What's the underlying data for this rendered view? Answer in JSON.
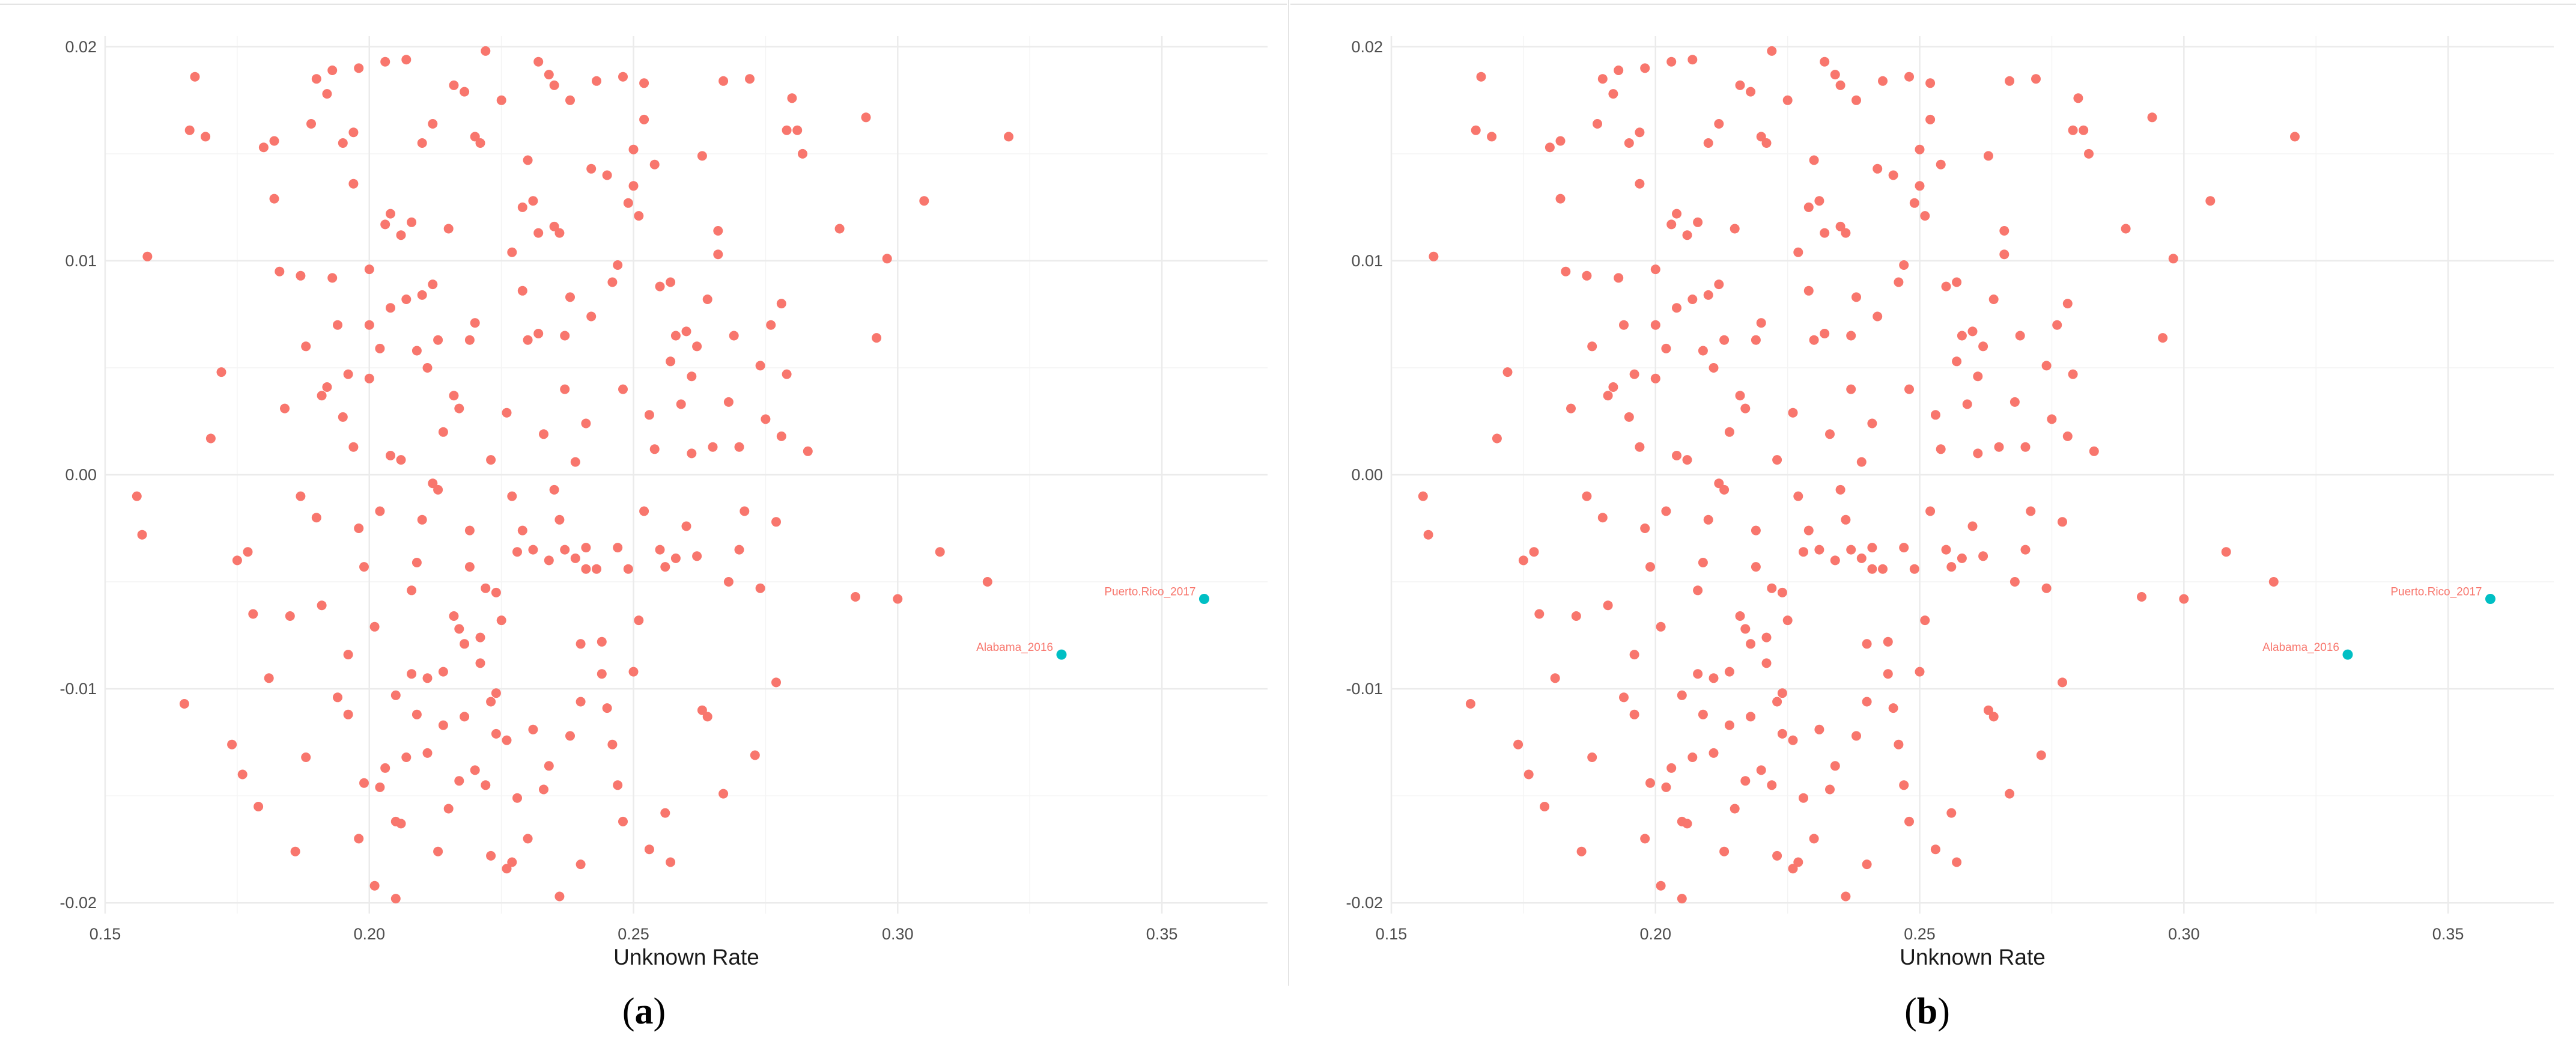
{
  "figure": {
    "panels": [
      {
        "caption_open": "(",
        "caption_letter": "a",
        "caption_close": ")"
      },
      {
        "caption_open": "(",
        "caption_letter": "b",
        "caption_close": ")"
      }
    ]
  },
  "chart_data": [
    {
      "type": "scatter",
      "xlabel": "Unknown Rate",
      "ylabel": "",
      "xlim": [
        0.15,
        0.37
      ],
      "ylim": [
        -0.0205,
        0.0205
      ],
      "xticks": [
        "0.15",
        "0.20",
        "0.25",
        "0.30",
        "0.35"
      ],
      "yticks": [
        "-0.02",
        "-0.01",
        "0.00",
        "0.01",
        "0.02"
      ],
      "grid": true,
      "colors": {
        "regular": "#f8766d",
        "highlighted": "#00bfc4",
        "grid": "#ebebeb"
      },
      "points_source": "shared",
      "highlighted": [
        {
          "label": "Puerto.Rico_2017",
          "x": 0.358,
          "y": -0.0058
        },
        {
          "label": "Alabama_2016",
          "x": 0.331,
          "y": -0.0084
        }
      ]
    },
    {
      "type": "scatter",
      "xlabel": "Unknown Rate",
      "ylabel": "",
      "xlim": [
        0.15,
        0.37
      ],
      "ylim": [
        -0.0205,
        0.0205
      ],
      "xticks": [
        "0.15",
        "0.20",
        "0.25",
        "0.30",
        "0.35"
      ],
      "yticks": [
        "-0.02",
        "-0.01",
        "0.00",
        "0.01",
        "0.02"
      ],
      "grid": true,
      "colors": {
        "regular": "#f8766d",
        "highlighted": "#00bfc4",
        "grid": "#ebebeb"
      },
      "points_source": "shared",
      "highlighted": [
        {
          "label": "Puerto.Rico_2017",
          "x": 0.358,
          "y": -0.0058
        },
        {
          "label": "Alabama_2016",
          "x": 0.331,
          "y": -0.0084
        }
      ]
    }
  ],
  "points": [
    [
      0.156,
      -0.001
    ],
    [
      0.157,
      -0.0028
    ],
    [
      0.158,
      0.0102
    ],
    [
      0.165,
      -0.0107
    ],
    [
      0.166,
      0.0161
    ],
    [
      0.167,
      0.0186
    ],
    [
      0.169,
      0.0158
    ],
    [
      0.17,
      0.0017
    ],
    [
      0.172,
      0.0048
    ],
    [
      0.174,
      -0.0126
    ],
    [
      0.175,
      -0.004
    ],
    [
      0.176,
      -0.014
    ],
    [
      0.177,
      -0.0036
    ],
    [
      0.178,
      -0.0065
    ],
    [
      0.179,
      -0.0155
    ],
    [
      0.18,
      0.0153
    ],
    [
      0.181,
      -0.0095
    ],
    [
      0.182,
      0.0156
    ],
    [
      0.182,
      0.0129
    ],
    [
      0.183,
      0.0095
    ],
    [
      0.184,
      0.0031
    ],
    [
      0.185,
      -0.0066
    ],
    [
      0.186,
      -0.0176
    ],
    [
      0.187,
      -0.001
    ],
    [
      0.187,
      0.0093
    ],
    [
      0.188,
      0.006
    ],
    [
      0.188,
      -0.0132
    ],
    [
      0.189,
      0.0164
    ],
    [
      0.19,
      -0.002
    ],
    [
      0.19,
      0.0185
    ],
    [
      0.191,
      0.0037
    ],
    [
      0.191,
      -0.0061
    ],
    [
      0.192,
      0.0041
    ],
    [
      0.192,
      0.0178
    ],
    [
      0.193,
      0.0189
    ],
    [
      0.193,
      0.0092
    ],
    [
      0.194,
      0.007
    ],
    [
      0.194,
      -0.0104
    ],
    [
      0.195,
      0.0155
    ],
    [
      0.195,
      0.0027
    ],
    [
      0.196,
      0.0047
    ],
    [
      0.196,
      -0.0084
    ],
    [
      0.196,
      -0.0112
    ],
    [
      0.197,
      0.0136
    ],
    [
      0.197,
      0.016
    ],
    [
      0.197,
      0.0013
    ],
    [
      0.198,
      -0.017
    ],
    [
      0.198,
      0.019
    ],
    [
      0.198,
      -0.0025
    ],
    [
      0.199,
      -0.0144
    ],
    [
      0.199,
      -0.0043
    ],
    [
      0.2,
      0.007
    ],
    [
      0.2,
      0.0045
    ],
    [
      0.2,
      0.0096
    ],
    [
      0.201,
      -0.0071
    ],
    [
      0.201,
      -0.0192
    ],
    [
      0.202,
      -0.0146
    ],
    [
      0.202,
      -0.0017
    ],
    [
      0.202,
      0.0059
    ],
    [
      0.203,
      0.0193
    ],
    [
      0.203,
      0.0117
    ],
    [
      0.203,
      -0.0137
    ],
    [
      0.204,
      0.0122
    ],
    [
      0.204,
      0.0078
    ],
    [
      0.204,
      0.0009
    ],
    [
      0.205,
      -0.0103
    ],
    [
      0.205,
      -0.0162
    ],
    [
      0.205,
      -0.0198
    ],
    [
      0.206,
      0.0007
    ],
    [
      0.206,
      0.0112
    ],
    [
      0.206,
      -0.0163
    ],
    [
      0.207,
      -0.0132
    ],
    [
      0.207,
      0.0194
    ],
    [
      0.207,
      0.0082
    ],
    [
      0.208,
      -0.0093
    ],
    [
      0.208,
      -0.0054
    ],
    [
      0.208,
      0.0118
    ],
    [
      0.209,
      -0.0041
    ],
    [
      0.209,
      0.0058
    ],
    [
      0.209,
      -0.0112
    ],
    [
      0.21,
      -0.0021
    ],
    [
      0.21,
      0.0155
    ],
    [
      0.21,
      0.0084
    ],
    [
      0.211,
      0.005
    ],
    [
      0.211,
      -0.0095
    ],
    [
      0.211,
      -0.013
    ],
    [
      0.212,
      0.0164
    ],
    [
      0.212,
      0.0089
    ],
    [
      0.212,
      -0.0004
    ],
    [
      0.213,
      0.0063
    ],
    [
      0.213,
      -0.0176
    ],
    [
      0.213,
      -0.0007
    ],
    [
      0.214,
      -0.0117
    ],
    [
      0.214,
      -0.0092
    ],
    [
      0.214,
      0.002
    ],
    [
      0.215,
      -0.0156
    ],
    [
      0.215,
      0.0115
    ],
    [
      0.216,
      -0.0066
    ],
    [
      0.216,
      0.0182
    ],
    [
      0.216,
      0.0037
    ],
    [
      0.217,
      -0.0143
    ],
    [
      0.217,
      -0.0072
    ],
    [
      0.217,
      0.0031
    ],
    [
      0.218,
      0.0179
    ],
    [
      0.218,
      -0.0113
    ],
    [
      0.218,
      -0.0079
    ],
    [
      0.219,
      0.0063
    ],
    [
      0.219,
      -0.0026
    ],
    [
      0.219,
      -0.0043
    ],
    [
      0.22,
      0.0158
    ],
    [
      0.22,
      0.0071
    ],
    [
      0.22,
      -0.0138
    ],
    [
      0.221,
      -0.0076
    ],
    [
      0.221,
      -0.0088
    ],
    [
      0.221,
      0.0155
    ],
    [
      0.222,
      -0.0145
    ],
    [
      0.222,
      -0.0053
    ],
    [
      0.222,
      0.0198
    ],
    [
      0.223,
      0.0007
    ],
    [
      0.223,
      -0.0106
    ],
    [
      0.223,
      -0.0178
    ],
    [
      0.224,
      -0.0121
    ],
    [
      0.224,
      -0.0055
    ],
    [
      0.224,
      -0.0102
    ],
    [
      0.225,
      0.0175
    ],
    [
      0.225,
      -0.0068
    ],
    [
      0.226,
      -0.0184
    ],
    [
      0.226,
      0.0029
    ],
    [
      0.226,
      -0.0124
    ],
    [
      0.227,
      0.0104
    ],
    [
      0.227,
      -0.0181
    ],
    [
      0.227,
      -0.001
    ],
    [
      0.228,
      -0.0151
    ],
    [
      0.228,
      -0.0036
    ],
    [
      0.229,
      0.0125
    ],
    [
      0.229,
      -0.0026
    ],
    [
      0.229,
      0.0086
    ],
    [
      0.23,
      0.0147
    ],
    [
      0.23,
      -0.017
    ],
    [
      0.23,
      0.0063
    ],
    [
      0.231,
      0.0128
    ],
    [
      0.231,
      -0.0119
    ],
    [
      0.231,
      -0.0035
    ],
    [
      0.232,
      0.0193
    ],
    [
      0.232,
      0.0113
    ],
    [
      0.232,
      0.0066
    ],
    [
      0.233,
      0.0019
    ],
    [
      0.233,
      -0.0147
    ],
    [
      0.234,
      -0.0136
    ],
    [
      0.234,
      0.0187
    ],
    [
      0.234,
      -0.004
    ],
    [
      0.235,
      0.0116
    ],
    [
      0.235,
      -0.0007
    ],
    [
      0.235,
      0.0182
    ],
    [
      0.236,
      -0.0197
    ],
    [
      0.236,
      0.0113
    ],
    [
      0.236,
      -0.0021
    ],
    [
      0.237,
      0.004
    ],
    [
      0.237,
      0.0065
    ],
    [
      0.237,
      -0.0035
    ],
    [
      0.238,
      0.0083
    ],
    [
      0.238,
      -0.0122
    ],
    [
      0.238,
      0.0175
    ],
    [
      0.239,
      0.0006
    ],
    [
      0.239,
      -0.0039
    ],
    [
      0.24,
      -0.0182
    ],
    [
      0.24,
      -0.0079
    ],
    [
      0.24,
      -0.0106
    ],
    [
      0.241,
      -0.0034
    ],
    [
      0.241,
      -0.0044
    ],
    [
      0.241,
      0.0024
    ],
    [
      0.242,
      0.0143
    ],
    [
      0.242,
      0.0074
    ],
    [
      0.243,
      0.0184
    ],
    [
      0.243,
      -0.0044
    ],
    [
      0.244,
      -0.0078
    ],
    [
      0.244,
      -0.0093
    ],
    [
      0.245,
      0.014
    ],
    [
      0.245,
      -0.0109
    ],
    [
      0.246,
      0.009
    ],
    [
      0.246,
      -0.0126
    ],
    [
      0.247,
      0.0098
    ],
    [
      0.247,
      -0.0034
    ],
    [
      0.247,
      -0.0145
    ],
    [
      0.248,
      0.004
    ],
    [
      0.248,
      0.0186
    ],
    [
      0.248,
      -0.0162
    ],
    [
      0.249,
      0.0127
    ],
    [
      0.249,
      -0.0044
    ],
    [
      0.25,
      0.0135
    ],
    [
      0.25,
      0.0152
    ],
    [
      0.25,
      -0.0092
    ],
    [
      0.251,
      0.0121
    ],
    [
      0.251,
      -0.0068
    ],
    [
      0.252,
      0.0166
    ],
    [
      0.252,
      0.0183
    ],
    [
      0.252,
      -0.0017
    ],
    [
      0.253,
      -0.0175
    ],
    [
      0.253,
      0.0028
    ],
    [
      0.254,
      0.0145
    ],
    [
      0.254,
      0.0012
    ],
    [
      0.255,
      -0.0035
    ],
    [
      0.255,
      0.0088
    ],
    [
      0.256,
      -0.0158
    ],
    [
      0.256,
      -0.0043
    ],
    [
      0.257,
      0.009
    ],
    [
      0.257,
      0.0053
    ],
    [
      0.257,
      -0.0181
    ],
    [
      0.258,
      0.0065
    ],
    [
      0.258,
      -0.0039
    ],
    [
      0.259,
      0.0033
    ],
    [
      0.26,
      0.0067
    ],
    [
      0.26,
      -0.0024
    ],
    [
      0.261,
      0.0046
    ],
    [
      0.261,
      0.001
    ],
    [
      0.262,
      0.006
    ],
    [
      0.262,
      -0.0038
    ],
    [
      0.263,
      -0.011
    ],
    [
      0.263,
      0.0149
    ],
    [
      0.264,
      0.0082
    ],
    [
      0.264,
      -0.0113
    ],
    [
      0.265,
      0.0013
    ],
    [
      0.266,
      0.0103
    ],
    [
      0.266,
      0.0114
    ],
    [
      0.267,
      0.0184
    ],
    [
      0.267,
      -0.0149
    ],
    [
      0.268,
      -0.005
    ],
    [
      0.268,
      0.0034
    ],
    [
      0.269,
      0.0065
    ],
    [
      0.27,
      -0.0035
    ],
    [
      0.27,
      0.0013
    ],
    [
      0.271,
      -0.0017
    ],
    [
      0.272,
      0.0185
    ],
    [
      0.273,
      -0.0131
    ],
    [
      0.274,
      0.0051
    ],
    [
      0.274,
      -0.0053
    ],
    [
      0.275,
      0.0026
    ],
    [
      0.276,
      0.007
    ],
    [
      0.277,
      -0.0022
    ],
    [
      0.277,
      -0.0097
    ],
    [
      0.278,
      0.008
    ],
    [
      0.278,
      0.0018
    ],
    [
      0.279,
      0.0047
    ],
    [
      0.279,
      0.0161
    ],
    [
      0.28,
      0.0176
    ],
    [
      0.281,
      0.0161
    ],
    [
      0.282,
      0.015
    ],
    [
      0.283,
      0.0011
    ],
    [
      0.289,
      0.0115
    ],
    [
      0.292,
      -0.0057
    ],
    [
      0.294,
      0.0167
    ],
    [
      0.296,
      0.0064
    ],
    [
      0.298,
      0.0101
    ],
    [
      0.3,
      -0.0058
    ],
    [
      0.305,
      0.0128
    ],
    [
      0.308,
      -0.0036
    ],
    [
      0.317,
      -0.005
    ],
    [
      0.321,
      0.0158
    ]
  ]
}
